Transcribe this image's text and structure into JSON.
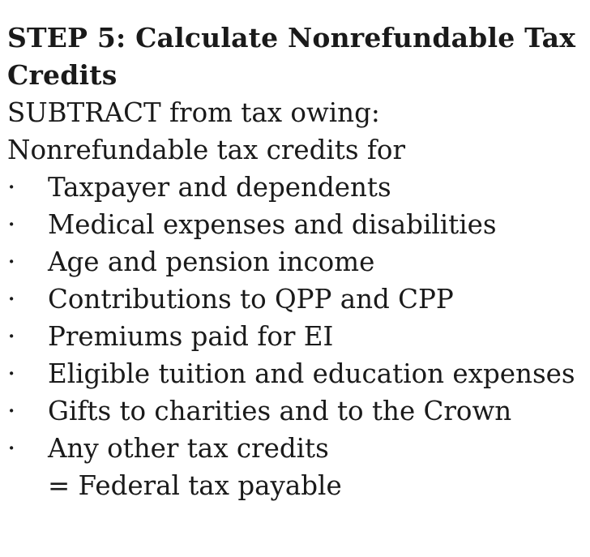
{
  "heading": "STEP 5: Calculate Nonrefundable Tax Credits",
  "intro_line_1": "SUBTRACT from tax owing:",
  "intro_line_2": "Nonrefundable tax credits for",
  "bullet_symbol": "·",
  "bullets": [
    {
      "text": "Taxpayer and dependents"
    },
    {
      "text": "Medical expenses and disabilities"
    },
    {
      "text": "Age and pension income"
    },
    {
      "text": "Contributions to QPP and CPP"
    },
    {
      "text": "Premiums paid for EI"
    },
    {
      "text": "Eligible tuition and education expenses"
    },
    {
      "text": "Gifts to charities and to the Crown"
    },
    {
      "text": "Any other tax credits"
    }
  ],
  "result": "= Federal tax payable"
}
